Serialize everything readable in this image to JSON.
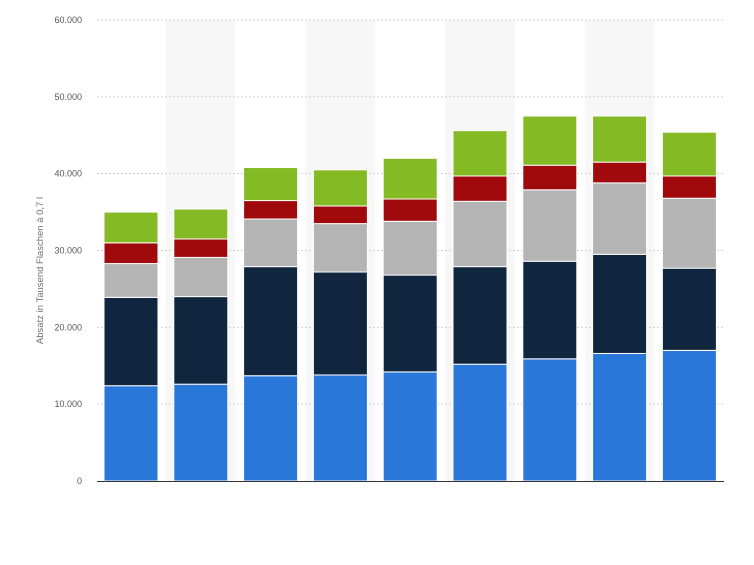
{
  "chart_data": {
    "type": "bar",
    "stacked": true,
    "title": "",
    "xlabel": "",
    "ylabel": "Absatz in Tausend Flaschen à 0,7 l",
    "ylim": [
      0,
      60000
    ],
    "y_ticks": [
      0,
      10000,
      20000,
      30000,
      40000,
      50000,
      60000
    ],
    "y_tick_labels": [
      "0",
      "10.000",
      "20.000",
      "30.000",
      "40.000",
      "50.000",
      "60.000"
    ],
    "grid": true,
    "categories": [
      "",
      "",
      "",
      "",
      "",
      "",
      "",
      "",
      ""
    ],
    "series": [
      {
        "color": "#2a77da",
        "values": [
          12400,
          12600,
          13700,
          13800,
          14200,
          15200,
          15900,
          16600,
          17000
        ]
      },
      {
        "color": "#10263f",
        "values": [
          11500,
          11400,
          14200,
          13400,
          12600,
          12700,
          12700,
          12900,
          10700
        ]
      },
      {
        "color": "#b4b4b4",
        "values": [
          4400,
          5100,
          6200,
          6300,
          7000,
          8500,
          9300,
          9300,
          9100
        ]
      },
      {
        "color": "#a10a0c",
        "values": [
          2700,
          2400,
          2400,
          2300,
          2900,
          3300,
          3200,
          2700,
          2900
        ]
      },
      {
        "color": "#84bb25",
        "values": [
          4000,
          3900,
          4300,
          4700,
          5300,
          5900,
          6400,
          6000,
          5700
        ]
      }
    ]
  }
}
